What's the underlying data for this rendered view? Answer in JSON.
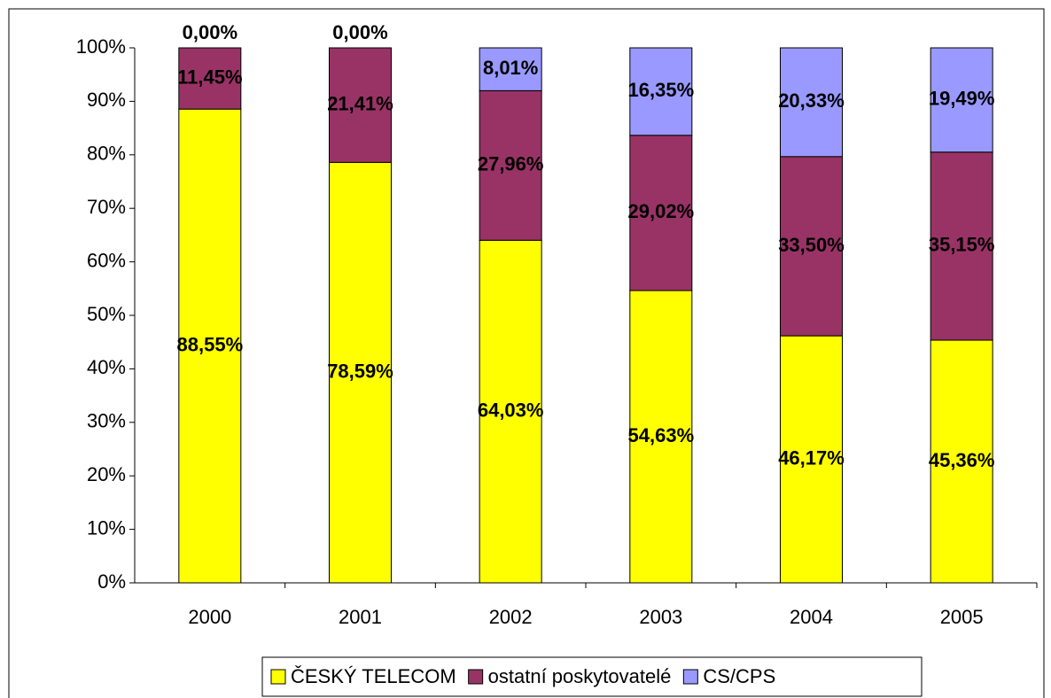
{
  "chart_data": {
    "type": "stacked_bar",
    "categories": [
      "2000",
      "2001",
      "2002",
      "2003",
      "2004",
      "2005"
    ],
    "series": [
      {
        "name": "ČESKÝ TELECOM",
        "color": "#ffff00",
        "values": [
          88.55,
          78.59,
          64.03,
          54.63,
          46.17,
          45.36
        ],
        "value_labels": [
          "88,55%",
          "78,59%",
          "64,03%",
          "54,63%",
          "46,17%",
          "45,36%"
        ]
      },
      {
        "name": "ostatní poskytovatelé",
        "color": "#993366",
        "values": [
          11.45,
          21.41,
          27.96,
          29.02,
          33.5,
          35.15
        ],
        "value_labels": [
          "11,45%",
          "21,41%",
          "27,96%",
          "29,02%",
          "33,50%",
          "35,15%"
        ]
      },
      {
        "name": "CS/CPS",
        "color": "#9999ff",
        "values": [
          0,
          0,
          8.01,
          16.35,
          20.33,
          19.49
        ],
        "value_labels": [
          "0,00%",
          "0,00%",
          "8,01%",
          "16,35%",
          "20,33%",
          "19,49%"
        ]
      }
    ],
    "ylim": [
      0,
      100
    ],
    "yticks": [
      {
        "value": 0,
        "label": "0%"
      },
      {
        "value": 10,
        "label": "10%"
      },
      {
        "value": 20,
        "label": "20%"
      },
      {
        "value": 30,
        "label": "30%"
      },
      {
        "value": 40,
        "label": "40%"
      },
      {
        "value": 50,
        "label": "50%"
      },
      {
        "value": 60,
        "label": "60%"
      },
      {
        "value": 70,
        "label": "70%"
      },
      {
        "value": 80,
        "label": "80%"
      },
      {
        "value": 90,
        "label": "90%"
      },
      {
        "value": 100,
        "label": "100%"
      }
    ],
    "grid": false,
    "legend": "bottom"
  }
}
